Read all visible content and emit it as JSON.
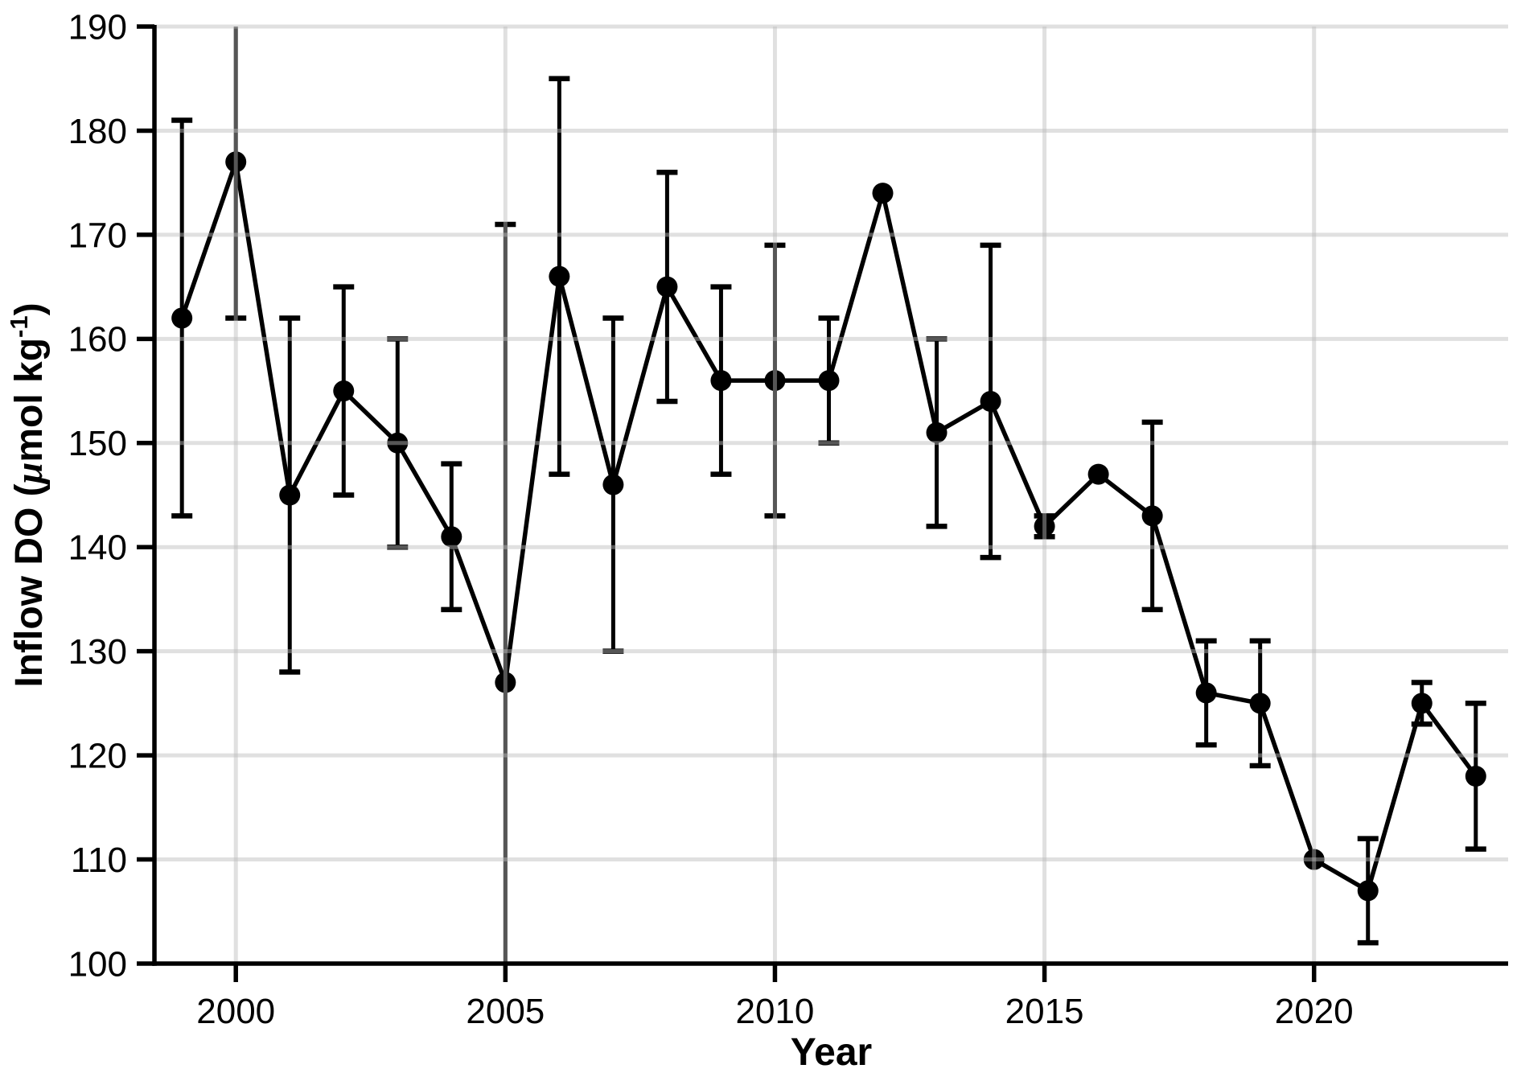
{
  "chart_data": {
    "type": "line",
    "title": "",
    "xlabel": "Year",
    "ylabel": "Inflow DO (μmol kg⁻¹)",
    "ylabel_parts": {
      "prefix": "Inflow DO (",
      "mu": "μ",
      "middle": "mol kg",
      "superscript": "-1",
      "suffix": ")"
    },
    "x": [
      1999,
      2000,
      2001,
      2002,
      2003,
      2004,
      2005,
      2006,
      2007,
      2008,
      2009,
      2010,
      2011,
      2012,
      2013,
      2014,
      2015,
      2016,
      2017,
      2018,
      2019,
      2020,
      2021,
      2022,
      2023
    ],
    "series": [
      {
        "name": "Inflow DO",
        "values": [
          162,
          177,
          145,
          155,
          150,
          141,
          127,
          166,
          146,
          165,
          156,
          156,
          156,
          174,
          151,
          154,
          142,
          147,
          143,
          126,
          125,
          110,
          107,
          125,
          118
        ],
        "err_low": [
          143,
          162,
          128,
          145,
          140,
          134,
          null,
          147,
          130,
          154,
          147,
          143,
          150,
          null,
          142,
          139,
          141,
          null,
          134,
          121,
          119,
          null,
          102,
          123,
          111
        ],
        "err_high": [
          181,
          null,
          162,
          165,
          160,
          148,
          171,
          185,
          162,
          176,
          165,
          169,
          162,
          null,
          160,
          169,
          143,
          null,
          152,
          131,
          131,
          null,
          112,
          127,
          125
        ]
      }
    ],
    "clipped_error_bars": {
      "2000": "top",
      "2005": "bottom"
    },
    "x_ticks": [
      2000,
      2005,
      2010,
      2015,
      2020
    ],
    "x_tick_labels": [
      "2000",
      "2005",
      "2010",
      "2015",
      "2020"
    ],
    "y_ticks": [
      100,
      110,
      120,
      130,
      140,
      150,
      160,
      170,
      180,
      190
    ],
    "y_tick_labels": [
      "100",
      "110",
      "120",
      "130",
      "140",
      "150",
      "160",
      "170",
      "180",
      "190"
    ],
    "xlim": [
      1998.49,
      2023.6
    ],
    "ylim": [
      100,
      190
    ],
    "grid": true,
    "gridlines_on_top": true,
    "legend": false,
    "colors": {
      "line": "#000000",
      "point": "#000000",
      "error_bar": "#000000",
      "gridline": "#e0e0e0",
      "axis": "#000000",
      "text": "#000000",
      "background": "#ffffff"
    }
  }
}
